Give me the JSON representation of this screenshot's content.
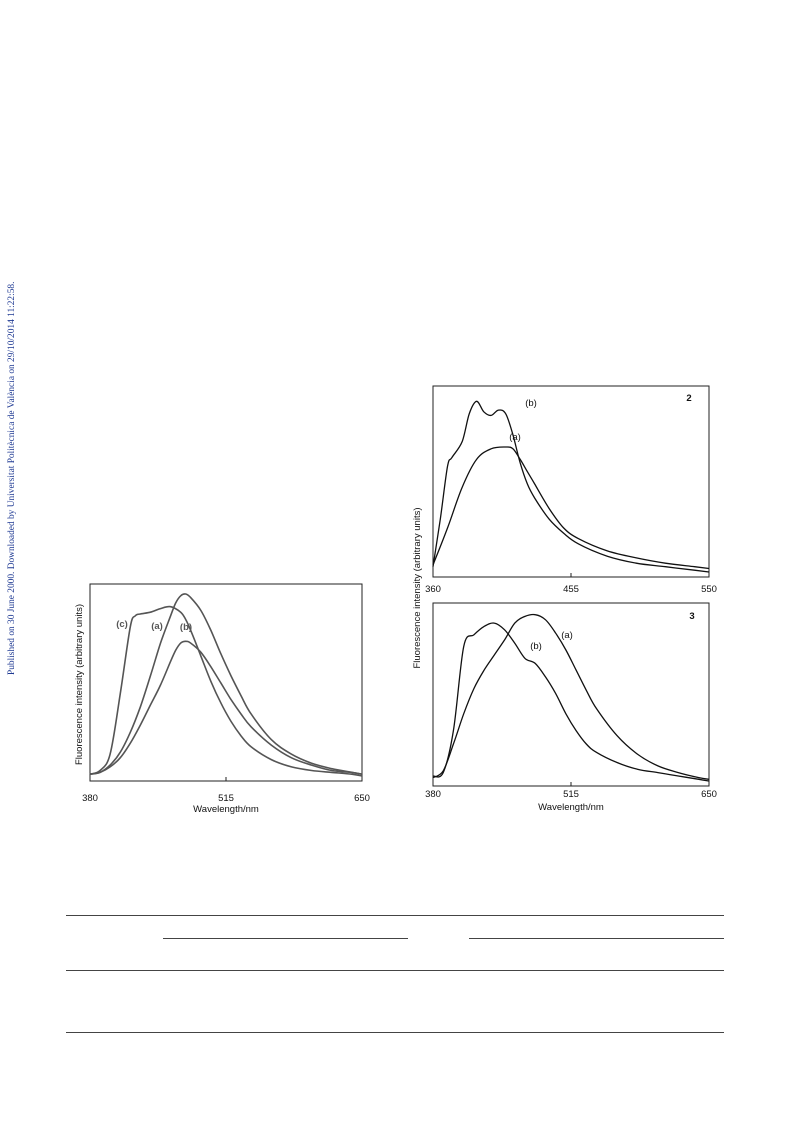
{
  "sidebar_note": "Published on 30 June 2000. Downloaded by Universitat Politècnica de València on 29/10/2014 11:22:58.",
  "chart_data": [
    {
      "type": "line",
      "panel_label": "",
      "xlabel": "Wavelength/nm",
      "ylabel": "Fluorescence intensity (arbitrary units)",
      "xlim": [
        380,
        650
      ],
      "ylim": [
        0,
        1.0
      ],
      "xticks": [
        "380",
        "515",
        "650"
      ],
      "series": [
        {
          "name": "(c)",
          "x": [
            380,
            390,
            400,
            410,
            420,
            425,
            430,
            440,
            450,
            460,
            470,
            475,
            480,
            490,
            500,
            510,
            520,
            530,
            540,
            560,
            580,
            600,
            620,
            640,
            650
          ],
          "values": [
            0.01,
            0.03,
            0.12,
            0.45,
            0.82,
            0.88,
            0.89,
            0.9,
            0.92,
            0.93,
            0.9,
            0.86,
            0.8,
            0.66,
            0.52,
            0.4,
            0.3,
            0.22,
            0.16,
            0.09,
            0.05,
            0.03,
            0.02,
            0.01,
            0.0
          ]
        },
        {
          "name": "(a)",
          "x": [
            380,
            390,
            400,
            410,
            420,
            430,
            440,
            450,
            460,
            465,
            470,
            475,
            480,
            490,
            500,
            510,
            520,
            530,
            540,
            560,
            580,
            600,
            620,
            640,
            650
          ],
          "values": [
            0.01,
            0.02,
            0.06,
            0.13,
            0.24,
            0.38,
            0.55,
            0.73,
            0.88,
            0.95,
            0.99,
            1.0,
            0.98,
            0.91,
            0.8,
            0.67,
            0.55,
            0.44,
            0.34,
            0.2,
            0.12,
            0.07,
            0.04,
            0.02,
            0.01
          ]
        },
        {
          "name": "(b)",
          "x": [
            380,
            390,
            400,
            410,
            420,
            430,
            440,
            450,
            460,
            465,
            470,
            475,
            480,
            490,
            500,
            510,
            520,
            530,
            540,
            560,
            580,
            600,
            620,
            640,
            650
          ],
          "values": [
            0.01,
            0.02,
            0.05,
            0.1,
            0.18,
            0.28,
            0.39,
            0.5,
            0.63,
            0.69,
            0.73,
            0.74,
            0.73,
            0.68,
            0.6,
            0.51,
            0.42,
            0.34,
            0.27,
            0.17,
            0.1,
            0.06,
            0.03,
            0.02,
            0.01
          ]
        }
      ]
    },
    {
      "type": "line",
      "panel_label": "2",
      "xlabel": "",
      "ylabel": "Fluorescence intensity (arbitrary units)",
      "xlim": [
        360,
        550
      ],
      "ylim": [
        0,
        1.0
      ],
      "xticks": [
        "360",
        "455",
        "550"
      ],
      "series": [
        {
          "name": "(b)",
          "x": [
            360,
            365,
            370,
            373,
            380,
            385,
            390,
            395,
            400,
            405,
            410,
            415,
            420,
            425,
            430,
            440,
            450,
            460,
            480,
            500,
            520,
            540,
            550
          ],
          "values": [
            0.03,
            0.3,
            0.6,
            0.65,
            0.74,
            0.9,
            0.97,
            0.91,
            0.89,
            0.92,
            0.9,
            0.78,
            0.62,
            0.5,
            0.42,
            0.3,
            0.22,
            0.16,
            0.09,
            0.05,
            0.03,
            0.01,
            0.0
          ]
        },
        {
          "name": "(a)",
          "x": [
            360,
            370,
            380,
            390,
            400,
            410,
            415,
            420,
            425,
            430,
            440,
            450,
            460,
            480,
            500,
            520,
            540,
            550
          ],
          "values": [
            0.04,
            0.25,
            0.48,
            0.64,
            0.7,
            0.71,
            0.7,
            0.64,
            0.57,
            0.5,
            0.36,
            0.25,
            0.19,
            0.12,
            0.08,
            0.05,
            0.03,
            0.02
          ]
        }
      ]
    },
    {
      "type": "line",
      "panel_label": "3",
      "xlabel": "Wavelength/nm",
      "ylabel": "",
      "xlim": [
        380,
        650
      ],
      "ylim": [
        0,
        1.0
      ],
      "xticks": [
        "380",
        "515",
        "650"
      ],
      "series": [
        {
          "name": "(b)",
          "x": [
            380,
            390,
            400,
            410,
            420,
            430,
            440,
            450,
            460,
            470,
            480,
            490,
            500,
            510,
            520,
            530,
            540,
            560,
            580,
            600,
            620,
            640,
            650
          ],
          "values": [
            0.03,
            0.05,
            0.3,
            0.8,
            0.87,
            0.92,
            0.94,
            0.9,
            0.82,
            0.73,
            0.7,
            0.62,
            0.52,
            0.4,
            0.3,
            0.22,
            0.17,
            0.11,
            0.07,
            0.05,
            0.03,
            0.01,
            0.0
          ]
        },
        {
          "name": "(a)",
          "x": [
            380,
            390,
            400,
            410,
            420,
            430,
            440,
            450,
            460,
            470,
            480,
            490,
            500,
            510,
            520,
            530,
            540,
            560,
            580,
            600,
            620,
            640,
            650
          ],
          "values": [
            0.02,
            0.06,
            0.22,
            0.4,
            0.55,
            0.66,
            0.75,
            0.84,
            0.94,
            0.98,
            0.99,
            0.96,
            0.88,
            0.78,
            0.66,
            0.54,
            0.43,
            0.27,
            0.16,
            0.09,
            0.05,
            0.02,
            0.01
          ]
        }
      ]
    }
  ]
}
